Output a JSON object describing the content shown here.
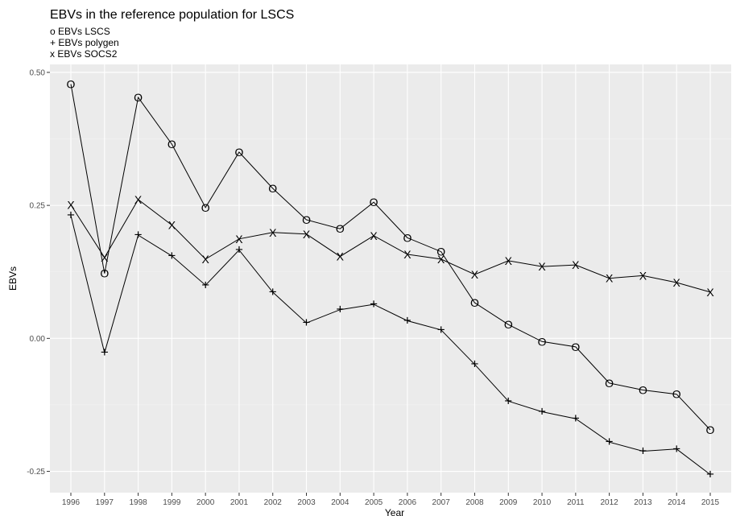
{
  "chart_data": {
    "type": "line",
    "title": "EBVs in the reference population for LSCS",
    "subtitle_lines": [
      "o EBVs LSCS",
      "+ EBVs polygen",
      "x EBVs SOCS2"
    ],
    "xlabel": "Year",
    "ylabel": "EBVs",
    "x": [
      1996,
      1997,
      1998,
      1999,
      2000,
      2001,
      2002,
      2003,
      2004,
      2005,
      2006,
      2007,
      2008,
      2009,
      2010,
      2011,
      2012,
      2013,
      2014,
      2015
    ],
    "x_tick_labels": [
      "1996",
      "1997",
      "1998",
      "1999",
      "2000",
      "2001",
      "2002",
      "2003",
      "2004",
      "2005",
      "2006",
      "2007",
      "2008",
      "2009",
      "2010",
      "2011",
      "2012",
      "2013",
      "2014",
      "2015"
    ],
    "ylim": [
      -0.29,
      0.515
    ],
    "y_ticks": [
      -0.25,
      0.0,
      0.25,
      0.5
    ],
    "y_tick_labels": [
      "-0.25",
      "0.00",
      "0.25",
      "0.50"
    ],
    "grid": true,
    "legend": "none",
    "series": [
      {
        "marker": "o",
        "values": [
          0.478,
          0.122,
          0.453,
          0.365,
          0.246,
          0.35,
          0.282,
          0.223,
          0.206,
          0.256,
          0.189,
          0.163,
          0.067,
          0.026,
          -0.006,
          -0.016,
          -0.084,
          -0.097,
          -0.105,
          -0.172
        ]
      },
      {
        "marker": "+",
        "values": [
          0.231,
          -0.027,
          0.194,
          0.155,
          0.1,
          0.166,
          0.087,
          0.029,
          0.054,
          0.064,
          0.033,
          0.016,
          -0.049,
          -0.118,
          -0.138,
          -0.151,
          -0.195,
          -0.212,
          -0.208,
          -0.256
        ]
      },
      {
        "marker": "x",
        "values": [
          0.251,
          0.152,
          0.261,
          0.213,
          0.149,
          0.187,
          0.199,
          0.196,
          0.154,
          0.193,
          0.158,
          0.149,
          0.12,
          0.146,
          0.135,
          0.138,
          0.113,
          0.118,
          0.105,
          0.087
        ]
      }
    ],
    "colors": {
      "panel_background": "#ebebeb",
      "grid_major": "#ffffff",
      "grid_minor": "#f3f3f3",
      "line": "#000000",
      "tick_label": "#4d4d4d"
    }
  }
}
